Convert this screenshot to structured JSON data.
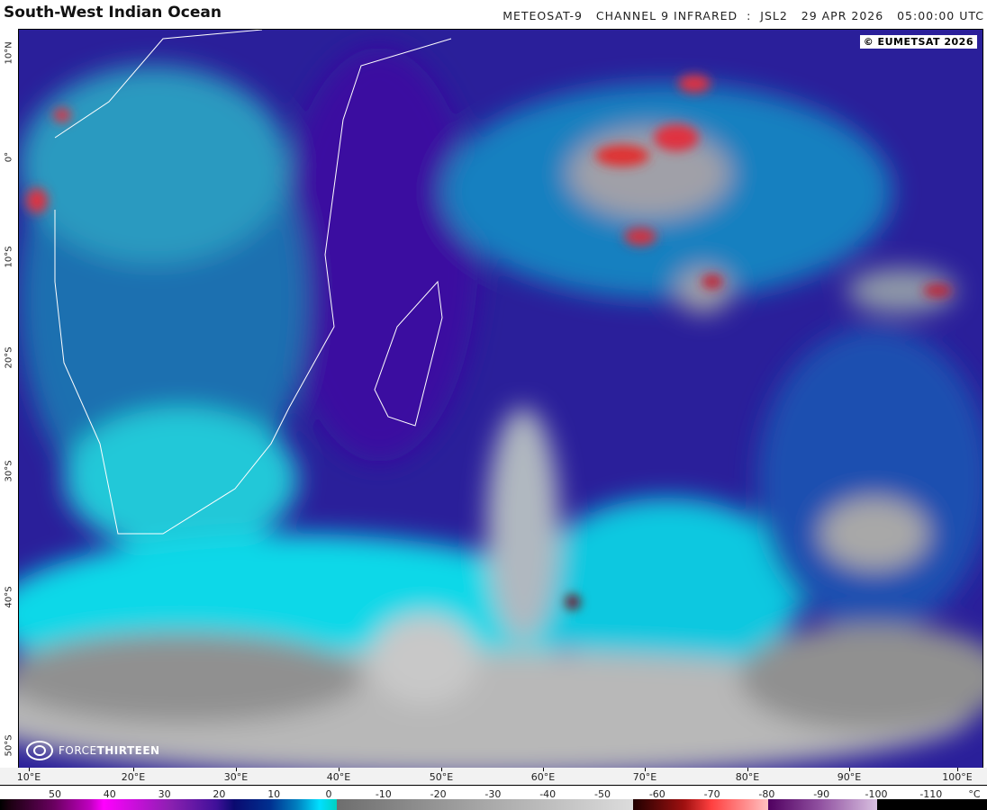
{
  "header": {
    "title": "South-West Indian Ocean",
    "subtitle": "METEOSAT-9   CHANNEL 9 INFRARED  :  JSL2   29 APR 2026   05:00:00 UTC"
  },
  "map": {
    "copyright": "© EUMETSAT 2026",
    "logo_text_a": "FORCE",
    "logo_text_b": "THIRTEEN",
    "lat_labels": [
      "10°N",
      "0°",
      "10°S",
      "20°S",
      "30°S",
      "40°S",
      "50°S"
    ],
    "lon_labels": [
      "10°E",
      "20°E",
      "30°E",
      "40°E",
      "50°E",
      "60°E",
      "70°E",
      "80°E",
      "90°E",
      "100°E"
    ]
  },
  "colorbar": {
    "unit": "°C",
    "labels": [
      "50",
      "40",
      "30",
      "20",
      "10",
      "0",
      "-10",
      "-20",
      "-30",
      "-40",
      "-50",
      "-60",
      "-70",
      "-80",
      "-90",
      "-100",
      "-110"
    ],
    "colors": {
      "warm": "#ff00ff",
      "mid": "#00e0ff",
      "cold_gray": "#dcdcdc",
      "very_cold": "#ff4040",
      "extreme": "#9050a0"
    }
  }
}
